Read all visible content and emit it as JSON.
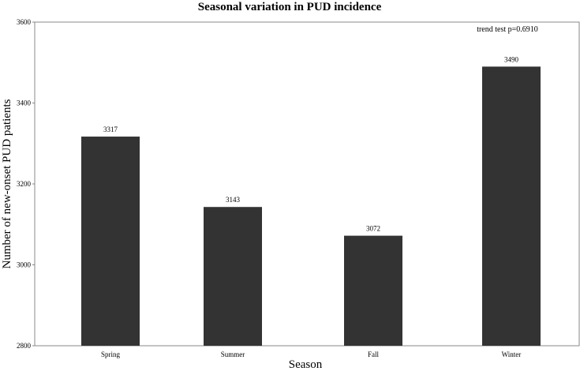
{
  "chart_data": {
    "type": "bar",
    "title": "Seasonal variation in PUD incidence",
    "xlabel": "Season",
    "ylabel": "Number of new-onset  PUD patients",
    "categories": [
      "Spring",
      "Summer",
      "Fall",
      "Winter"
    ],
    "values": [
      3317,
      3143,
      3072,
      3490
    ],
    "data_labels": [
      "3317",
      "3143",
      "3072",
      "3490"
    ],
    "ylim": [
      2800,
      3600
    ],
    "yticks": [
      2800,
      3000,
      3200,
      3400,
      3600
    ],
    "ytick_labels": [
      "2800",
      "3000",
      "3200",
      "3400",
      "3600"
    ],
    "annotation": "trend test p=0.6910",
    "bar_color": "#333333",
    "grid": false,
    "legend": "none"
  }
}
